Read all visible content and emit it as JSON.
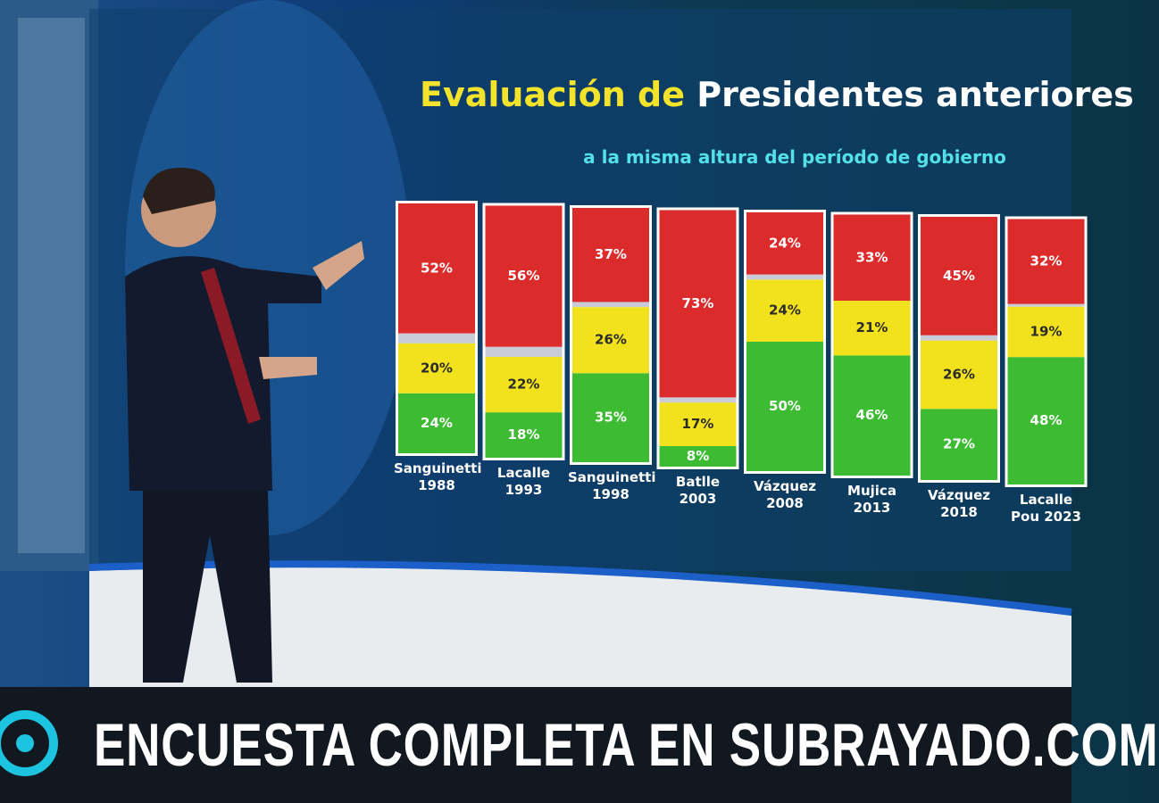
{
  "chart_data": {
    "type": "stacked-bar",
    "title_parts": [
      "Evaluación de",
      "Presidentes anteriores"
    ],
    "subtitle": "a la misma altura del período de gobierno",
    "categories": [
      "Sanguinetti 1988",
      "Lacalle 1993",
      "Sanguinetti 1998",
      "Batlle 2003",
      "Vázquez 2008",
      "Mujica 2013",
      "Vázquez 2018",
      "Lacalle Pou 2023"
    ],
    "series": [
      {
        "color": "#3dbb32",
        "values": [
          24,
          18,
          35,
          8,
          50,
          46,
          27,
          48
        ],
        "value_labels": [
          "24%",
          "18%",
          "35%",
          "8%",
          "50%",
          "46%",
          "27%",
          "48%"
        ]
      },
      {
        "color": "#f2e21d",
        "values": [
          20,
          22,
          26,
          17,
          24,
          21,
          26,
          19
        ],
        "value_labels": [
          "20%",
          "22%",
          "26%",
          "17%",
          "24%",
          "21%",
          "26%",
          "19%"
        ]
      },
      {
        "color": "#c9ccd6",
        "values": [
          4,
          4,
          2,
          2,
          2,
          0,
          2,
          1
        ]
      },
      {
        "color": "#dc2b2b",
        "values": [
          52,
          56,
          37,
          73,
          24,
          33,
          45,
          32
        ],
        "value_labels": [
          "52%",
          "56%",
          "37%",
          "73%",
          "24%",
          "33%",
          "45%",
          "32%"
        ]
      }
    ]
  },
  "banner": "ENCUESTA COMPLETA EN SUBRAYADO.COM"
}
